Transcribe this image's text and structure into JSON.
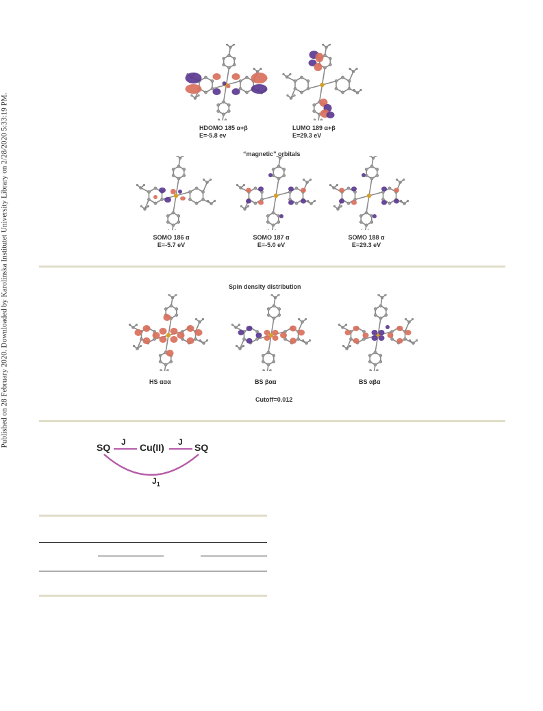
{
  "side_note": "Published on 28 February 2020. Downloaded by Karolinska Institutet University Library on 2/28/2020 5:33:19 PM.",
  "figure_top": {
    "orbitals_top": [
      {
        "name": "HDOMO 185 α+β",
        "energy": "E=-5.8 ev"
      },
      {
        "name": "LUMO 189 α+β",
        "energy": "E=29.3 eV"
      }
    ],
    "magnetic_heading": "“magnetic” orbitals",
    "orbitals_bottom": [
      {
        "name": "SOMO 186 α",
        "energy": "E=-5.7 eV"
      },
      {
        "name": "SOMO 187 α",
        "energy": "E=-5.0 eV"
      },
      {
        "name": "SOMO 188 α",
        "energy": "E=29.3 eV"
      }
    ]
  },
  "figure_spin": {
    "heading": "Spin density distribution",
    "labels": [
      "HS ααα",
      "BS βαα",
      "BS αβα"
    ],
    "cutoff": "Cutoff=0.012"
  },
  "coupling_scheme": {
    "left": "SQ",
    "center": "Cu(II)",
    "right": "SQ",
    "j_left": "J",
    "j_right": "J",
    "j1_main": "J",
    "j1_sub": "1",
    "arc_color": "#b65aa8"
  },
  "colors": {
    "lobe_pos": "#d9705c",
    "lobe_neg": "#5b3a91",
    "atom": "#9c9c9c",
    "rule": "#dfdcc8"
  }
}
